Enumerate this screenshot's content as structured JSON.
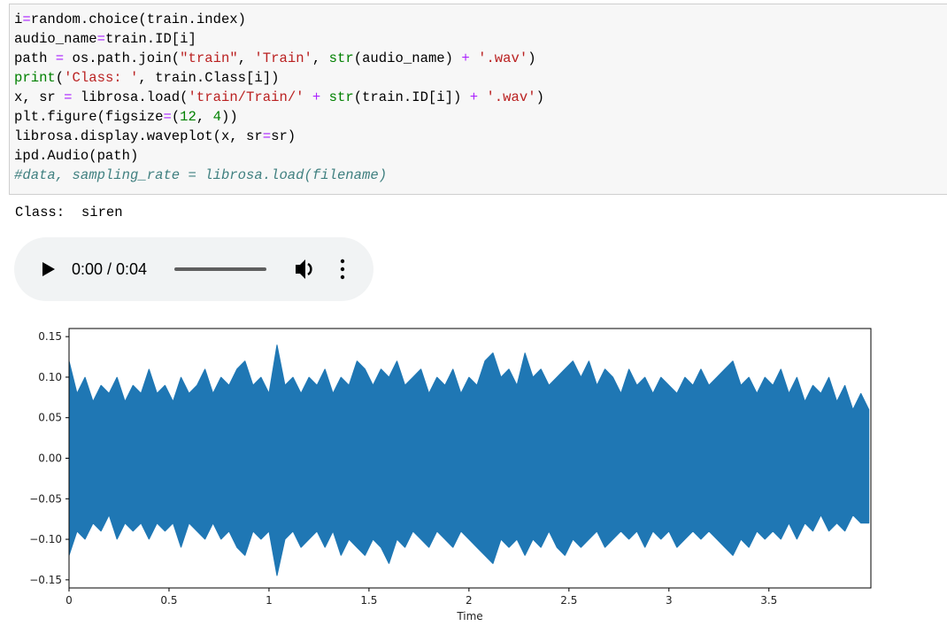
{
  "code_cell": {
    "lines": [
      [
        {
          "text": "i",
          "color": "#000000"
        },
        {
          "text": "=",
          "color": "#aa22ff"
        },
        {
          "text": "random.choice(train.index)",
          "color": "#000000"
        }
      ],
      [
        {
          "text": "audio_name",
          "color": "#000000"
        },
        {
          "text": "=",
          "color": "#aa22ff"
        },
        {
          "text": "train.ID[i]",
          "color": "#000000"
        }
      ],
      [
        {
          "text": "path ",
          "color": "#000000"
        },
        {
          "text": "=",
          "color": "#aa22ff"
        },
        {
          "text": " os.path.join(",
          "color": "#000000"
        },
        {
          "text": "\"train\"",
          "color": "#ba2121"
        },
        {
          "text": ", ",
          "color": "#000000"
        },
        {
          "text": "'Train'",
          "color": "#ba2121"
        },
        {
          "text": ", ",
          "color": "#000000"
        },
        {
          "text": "str",
          "color": "#008000"
        },
        {
          "text": "(audio_name) ",
          "color": "#000000"
        },
        {
          "text": "+",
          "color": "#aa22ff"
        },
        {
          "text": " ",
          "color": "#000000"
        },
        {
          "text": "'.wav'",
          "color": "#ba2121"
        },
        {
          "text": ")",
          "color": "#000000"
        }
      ],
      [
        {
          "text": "print",
          "color": "#008000"
        },
        {
          "text": "(",
          "color": "#000000"
        },
        {
          "text": "'Class: '",
          "color": "#ba2121"
        },
        {
          "text": ", train.Class[i])",
          "color": "#000000"
        }
      ],
      [
        {
          "text": "x, sr ",
          "color": "#000000"
        },
        {
          "text": "=",
          "color": "#aa22ff"
        },
        {
          "text": " librosa.load(",
          "color": "#000000"
        },
        {
          "text": "'train/Train/'",
          "color": "#ba2121"
        },
        {
          "text": " ",
          "color": "#000000"
        },
        {
          "text": "+",
          "color": "#aa22ff"
        },
        {
          "text": " ",
          "color": "#000000"
        },
        {
          "text": "str",
          "color": "#008000"
        },
        {
          "text": "(train.ID[i]) ",
          "color": "#000000"
        },
        {
          "text": "+",
          "color": "#aa22ff"
        },
        {
          "text": " ",
          "color": "#000000"
        },
        {
          "text": "'.wav'",
          "color": "#ba2121"
        },
        {
          "text": ")",
          "color": "#000000"
        }
      ],
      [
        {
          "text": "plt.figure(figsize",
          "color": "#000000"
        },
        {
          "text": "=",
          "color": "#aa22ff"
        },
        {
          "text": "(",
          "color": "#000000"
        },
        {
          "text": "12",
          "color": "#008000"
        },
        {
          "text": ", ",
          "color": "#000000"
        },
        {
          "text": "4",
          "color": "#008000"
        },
        {
          "text": "))",
          "color": "#000000"
        }
      ],
      [
        {
          "text": "librosa.display.waveplot(x, sr",
          "color": "#000000"
        },
        {
          "text": "=",
          "color": "#aa22ff"
        },
        {
          "text": "sr)",
          "color": "#000000"
        }
      ],
      [
        {
          "text": "ipd.Audio(path)",
          "color": "#000000"
        }
      ],
      [
        {
          "text": "#data, sampling_rate = librosa.load(filename)",
          "color": "#408080",
          "style": "italic"
        }
      ]
    ]
  },
  "output": {
    "text": "Class:  siren"
  },
  "audio_player": {
    "time": "0:00 / 0:04"
  },
  "chart_data": {
    "type": "area",
    "xlabel": "Time",
    "x": [
      0,
      0.04,
      0.08,
      0.12,
      0.16,
      0.2,
      0.24,
      0.28,
      0.32,
      0.36,
      0.4,
      0.44,
      0.48,
      0.52,
      0.56,
      0.6,
      0.64,
      0.68,
      0.72,
      0.76,
      0.8,
      0.84,
      0.88,
      0.92,
      0.96,
      1,
      1.04,
      1.08,
      1.12,
      1.16,
      1.2,
      1.24,
      1.28,
      1.32,
      1.36,
      1.4,
      1.44,
      1.48,
      1.52,
      1.56,
      1.6,
      1.64,
      1.68,
      1.72,
      1.76,
      1.8,
      1.84,
      1.88,
      1.92,
      1.96,
      2,
      2.04,
      2.08,
      2.12,
      2.16,
      2.2,
      2.24,
      2.28,
      2.32,
      2.36,
      2.4,
      2.44,
      2.48,
      2.52,
      2.56,
      2.6,
      2.64,
      2.68,
      2.72,
      2.76,
      2.8,
      2.84,
      2.88,
      2.92,
      2.96,
      3,
      3.04,
      3.08,
      3.12,
      3.16,
      3.2,
      3.24,
      3.28,
      3.32,
      3.36,
      3.4,
      3.44,
      3.48,
      3.52,
      3.56,
      3.6,
      3.64,
      3.68,
      3.72,
      3.76,
      3.8,
      3.84,
      3.88,
      3.92,
      3.96,
      4
    ],
    "series": [
      {
        "color": "#1f77b4",
        "values": [
          0.12,
          0.08,
          0.1,
          0.07,
          0.09,
          0.08,
          0.1,
          0.07,
          0.09,
          0.08,
          0.11,
          0.08,
          0.09,
          0.07,
          0.1,
          0.08,
          0.09,
          0.11,
          0.08,
          0.1,
          0.09,
          0.11,
          0.12,
          0.09,
          0.1,
          0.08,
          0.14,
          0.09,
          0.1,
          0.08,
          0.1,
          0.09,
          0.11,
          0.08,
          0.1,
          0.09,
          0.12,
          0.11,
          0.09,
          0.11,
          0.1,
          0.12,
          0.09,
          0.1,
          0.11,
          0.08,
          0.1,
          0.09,
          0.11,
          0.08,
          0.1,
          0.09,
          0.12,
          0.13,
          0.1,
          0.11,
          0.09,
          0.13,
          0.1,
          0.11,
          0.09,
          0.1,
          0.11,
          0.12,
          0.1,
          0.12,
          0.09,
          0.11,
          0.1,
          0.08,
          0.11,
          0.09,
          0.1,
          0.08,
          0.1,
          0.09,
          0.08,
          0.1,
          0.09,
          0.11,
          0.09,
          0.1,
          0.11,
          0.12,
          0.09,
          0.1,
          0.08,
          0.1,
          0.09,
          0.11,
          0.08,
          0.1,
          0.07,
          0.09,
          0.08,
          0.1,
          0.07,
          0.09,
          0.06,
          0.08,
          0.06
        ]
      },
      {
        "color": "#1f77b4",
        "values": [
          -0.12,
          -0.09,
          -0.1,
          -0.08,
          -0.09,
          -0.07,
          -0.1,
          -0.08,
          -0.09,
          -0.08,
          -0.1,
          -0.08,
          -0.09,
          -0.08,
          -0.11,
          -0.08,
          -0.09,
          -0.1,
          -0.08,
          -0.1,
          -0.09,
          -0.11,
          -0.12,
          -0.09,
          -0.1,
          -0.09,
          -0.145,
          -0.1,
          -0.09,
          -0.11,
          -0.1,
          -0.09,
          -0.11,
          -0.09,
          -0.12,
          -0.1,
          -0.11,
          -0.12,
          -0.1,
          -0.11,
          -0.13,
          -0.1,
          -0.11,
          -0.09,
          -0.1,
          -0.11,
          -0.09,
          -0.1,
          -0.11,
          -0.09,
          -0.1,
          -0.11,
          -0.12,
          -0.13,
          -0.1,
          -0.11,
          -0.1,
          -0.12,
          -0.1,
          -0.11,
          -0.09,
          -0.11,
          -0.12,
          -0.1,
          -0.11,
          -0.1,
          -0.09,
          -0.11,
          -0.1,
          -0.09,
          -0.1,
          -0.09,
          -0.11,
          -0.09,
          -0.1,
          -0.09,
          -0.11,
          -0.1,
          -0.09,
          -0.1,
          -0.09,
          -0.1,
          -0.11,
          -0.12,
          -0.1,
          -0.11,
          -0.09,
          -0.1,
          -0.09,
          -0.1,
          -0.08,
          -0.1,
          -0.08,
          -0.09,
          -0.07,
          -0.09,
          -0.08,
          -0.09,
          -0.07,
          -0.08,
          -0.08
        ]
      }
    ],
    "xlim": [
      0,
      4.01
    ],
    "xticks": [
      0,
      0.5,
      1,
      1.5,
      2,
      2.5,
      3,
      3.5
    ],
    "ylim": [
      -0.16,
      0.16
    ],
    "yticks": [
      {
        "value": -0.15,
        "label": "−0.15"
      },
      {
        "value": -0.1,
        "label": "−0.10"
      },
      {
        "value": -0.05,
        "label": "−0.05"
      },
      {
        "value": 0,
        "label": "0.00"
      },
      0.05,
      {
        "value": 0.1,
        "label": "0.10"
      },
      0.15
    ]
  }
}
